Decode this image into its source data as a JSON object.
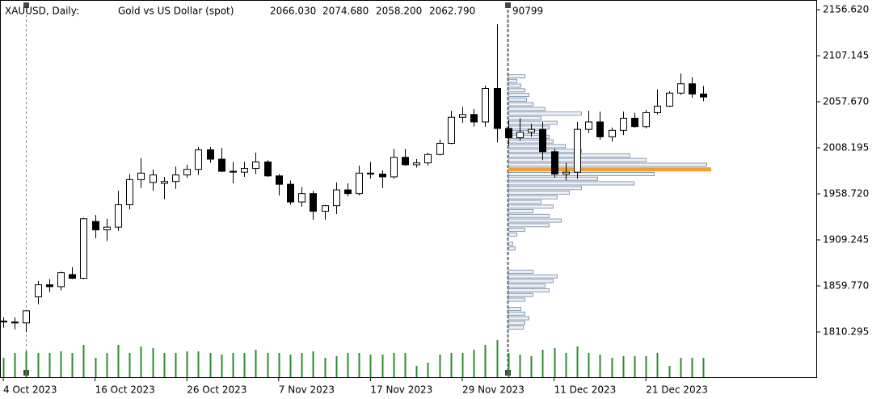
{
  "chart_data": {
    "type": "candlestick",
    "title": "XAUUSD, Daily:",
    "subtitle": "Gold vs US Dollar (spot)",
    "status": {
      "values": [
        2066.03,
        2074.68,
        2058.2,
        2062.79,
        90799
      ],
      "value_labels": [
        "2066.030",
        "2074.680",
        "2058.200",
        "2062.790",
        "90799"
      ]
    },
    "categories": [
      "4 Oct 2023",
      null,
      null,
      null,
      null,
      null,
      null,
      null,
      "16 Oct 2023",
      null,
      null,
      null,
      null,
      null,
      null,
      null,
      "26 Oct 2023",
      null,
      null,
      null,
      null,
      null,
      null,
      null,
      "7 Nov 2023",
      null,
      null,
      null,
      null,
      null,
      null,
      null,
      "17 Nov 2023",
      null,
      null,
      null,
      null,
      null,
      null,
      null,
      "29 Nov 2023",
      null,
      null,
      null,
      null,
      null,
      null,
      null,
      "11 Dec 2023",
      null,
      null,
      null,
      null,
      null,
      null,
      null,
      "21 Dec 2023",
      null,
      null,
      null,
      null,
      null
    ],
    "open": [
      1822,
      1821,
      1820,
      1848,
      1861,
      1859,
      1872,
      1868,
      1929,
      1920,
      1923,
      1947,
      1974,
      1971,
      1970,
      1972,
      1979,
      1985,
      2006,
      1996,
      1983,
      1982,
      1986,
      1993,
      1978,
      1969,
      1950,
      1959,
      1940,
      1946,
      1963,
      1959,
      1981,
      1980,
      1977,
      1998,
      1990,
      1992,
      2001,
      2013,
      2041,
      2044,
      2036,
      2072,
      2029,
      2019,
      2025,
      2028,
      2004,
      1980,
      1982,
      2028,
      2036,
      2020,
      2027,
      2040,
      2031,
      2046,
      2053,
      2067,
      2077,
      2066.03
    ],
    "high": [
      1826,
      1826,
      1834,
      1865,
      1867,
      1875,
      1880,
      1933,
      1936,
      1932,
      1962,
      1980,
      1997,
      1985,
      1977,
      1988,
      1990,
      2009,
      2009,
      2008,
      1993,
      1993,
      2003,
      1995,
      1980,
      1973,
      1966,
      1962,
      1947,
      1971,
      1970,
      1989,
      1993,
      1984,
      2007,
      2007,
      1996,
      2003,
      2017,
      2048,
      2052,
      2050,
      2075,
      2141,
      2038,
      2040,
      2034,
      2036,
      2007,
      1992,
      2036,
      2048,
      2047,
      2030,
      2047,
      2046,
      2049,
      2071,
      2069,
      2088,
      2084,
      2074.68
    ],
    "low": [
      1815,
      1813,
      1810,
      1840,
      1853,
      1855,
      1867,
      1867,
      1911,
      1908,
      1919,
      1942,
      1965,
      1962,
      1953,
      1964,
      1976,
      1979,
      1992,
      1982,
      1970,
      1977,
      1980,
      1977,
      1957,
      1947,
      1945,
      1931,
      1931,
      1937,
      1956,
      1957,
      1975,
      1965,
      1975,
      1989,
      1987,
      1989,
      2000,
      2012,
      2035,
      2031,
      2031,
      2014,
      2010,
      2016,
      2020,
      1995,
      1976,
      1973,
      1975,
      2024,
      2017,
      2015,
      2022,
      2030,
      2029,
      2044,
      2052,
      2065,
      2062,
      2058.2
    ],
    "close": [
      1821,
      1820,
      1833,
      1861,
      1859,
      1874,
      1868,
      1932,
      1920,
      1923,
      1947,
      1974,
      1981,
      1979,
      1972,
      1979,
      1985,
      2006,
      1996,
      1983,
      1982,
      1986,
      1993,
      1978,
      1969,
      1950,
      1959,
      1940,
      1946,
      1963,
      1959,
      1981,
      1980,
      1977,
      1998,
      1990,
      1992,
      2001,
      2013,
      2041,
      2044,
      2036,
      2072,
      2029,
      2019,
      2025,
      2028,
      2004,
      1980,
      1982,
      2028,
      2036,
      2020,
      2027,
      2040,
      2031,
      2046,
      2053,
      2067,
      2077,
      2066,
      2062.79
    ],
    "volume": [
      91200,
      114000,
      121600,
      114000,
      114000,
      121600,
      114000,
      152000,
      91200,
      114000,
      152000,
      114000,
      144400,
      136800,
      114000,
      114000,
      121600,
      121600,
      114000,
      106400,
      114000,
      114000,
      129200,
      114000,
      114000,
      106400,
      114000,
      121600,
      91200,
      98800,
      114000,
      114000,
      106400,
      106400,
      114000,
      114000,
      53200,
      68400,
      106400,
      114000,
      114000,
      129200,
      152000,
      174800,
      114000,
      106400,
      98800,
      129200,
      136800,
      114000,
      144400,
      114000,
      106400,
      91200,
      98800,
      98800,
      98800,
      114000,
      53200,
      91200,
      91200,
      90799
    ],
    "bull_color": "#ffffff",
    "bear_color": "#000000",
    "volume_color": "#2e8b2e",
    "profile": {
      "color": "#8a9bb0",
      "fill": "#eef2f7",
      "highlight_color": "#f0a030",
      "prices": [
        2085,
        2080,
        2075,
        2070,
        2065,
        2060,
        2055,
        2050,
        2045,
        2040,
        2035,
        2030,
        2025,
        2020,
        2015,
        2010,
        2005,
        2000,
        1995,
        1990,
        1985,
        1980,
        1975,
        1970,
        1965,
        1960,
        1955,
        1950,
        1945,
        1940,
        1935,
        1930,
        1925,
        1920,
        1915,
        1905,
        1900,
        1875,
        1870,
        1865,
        1860,
        1855,
        1850,
        1845,
        1835,
        1830,
        1825,
        1820,
        1815
      ],
      "values": [
        20,
        10,
        15,
        20,
        25,
        22,
        30,
        45,
        90,
        40,
        60,
        50,
        45,
        50,
        55,
        70,
        90,
        150,
        170,
        245,
        250,
        180,
        110,
        155,
        90,
        75,
        60,
        40,
        55,
        30,
        50,
        65,
        50,
        20,
        10,
        5,
        8,
        30,
        60,
        55,
        45,
        50,
        30,
        20,
        15,
        20,
        25,
        20,
        18
      ]
    },
    "ylim": [
      1761.69,
      2167.04
    ],
    "yticks": [
      {
        "value": 2156.62,
        "label": "2156.620"
      },
      {
        "value": 2107.145,
        "label": "2107.145"
      },
      {
        "value": 2057.67,
        "label": "2057.670"
      },
      {
        "value": 2008.195,
        "label": "2008.195"
      },
      {
        "value": 1958.72,
        "label": "1958.720"
      },
      {
        "value": 1909.245,
        "label": "1909.245"
      },
      {
        "value": 1859.77,
        "label": "1859.770"
      },
      {
        "value": 1810.295,
        "label": "1810.295"
      }
    ],
    "grid": false
  }
}
